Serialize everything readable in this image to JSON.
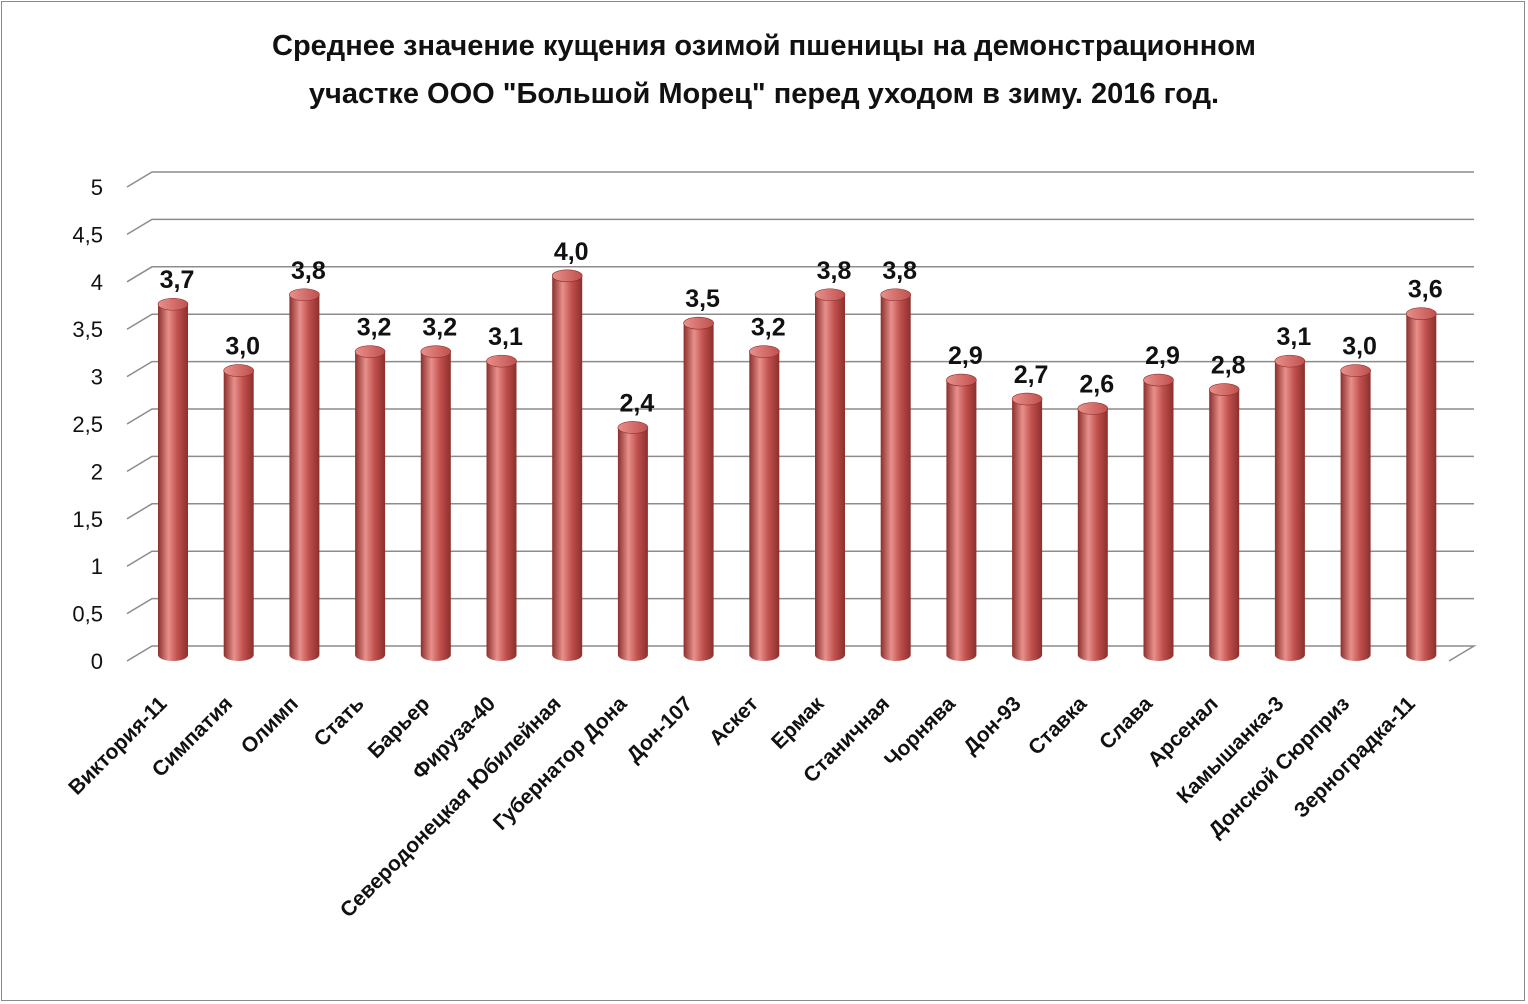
{
  "chart_data": {
    "type": "bar",
    "title_lines": [
      "Среднее значение кущения озимой пшеницы на демонстрационном",
      "участке ООО \"Большой Морец\" перед уходом в зиму. 2016 год."
    ],
    "categories": [
      "Виктория-11",
      "Симпатия",
      "Олимп",
      "Стать",
      "Барьер",
      "Фируза-40",
      "Северодонецкая Юбилейная",
      "Губернатор Дона",
      "Дон-107",
      "Аскет",
      "Ермак",
      "Станичная",
      "Чорнява",
      "Дон-93",
      "Ставка",
      "Слава",
      "Арсенал",
      "Камышанка-3",
      "Донской Сюрприз",
      "Зерноградка-11"
    ],
    "values": [
      3.7,
      3.0,
      3.8,
      3.2,
      3.2,
      3.1,
      4.0,
      2.4,
      3.5,
      3.2,
      3.8,
      3.8,
      2.9,
      2.7,
      2.6,
      2.9,
      2.8,
      3.1,
      3.0,
      3.6
    ],
    "data_labels": [
      "3,7",
      "3,0",
      "3,8",
      "3,2",
      "3,2",
      "3,1",
      "4,0",
      "2,4",
      "3,5",
      "3,2",
      "3,8",
      "3,8",
      "2,9",
      "2,7",
      "2,6",
      "2,9",
      "2,8",
      "3,1",
      "3,0",
      "3,6"
    ],
    "y_ticks": [
      "0",
      "0,5",
      "1",
      "1,5",
      "2",
      "2,5",
      "3",
      "3,5",
      "4",
      "4,5",
      "5"
    ],
    "ylim": [
      0,
      5
    ],
    "grid": true,
    "legend": "none",
    "bar_style": "3d-cylinder",
    "colors": {
      "bar": "#c0504d",
      "bar_light": "#e8908c",
      "bar_dark": "#8c2f2c",
      "grid": "#8c8c8c"
    }
  }
}
